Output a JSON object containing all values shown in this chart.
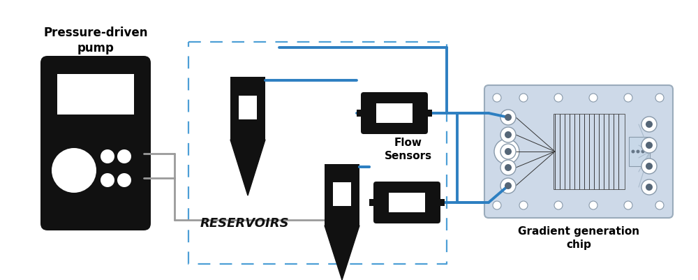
{
  "bg_color": "#ffffff",
  "title": "Pressure-driven\npump",
  "label_reservoirs": "RESERVOIRS",
  "label_flow": "Flow\nSensors",
  "label_chip": "Gradient generation\nchip",
  "black": "#111111",
  "chip_bg": "#cdd9e8",
  "chip_border": "#9aabbb",
  "blue": "#2d7fc1",
  "gray": "#9a9a9a",
  "dashed_blue": "#4d9fd6",
  "lw_blue": 2.8,
  "lw_gray": 2.0,
  "lw_dash": 1.6
}
